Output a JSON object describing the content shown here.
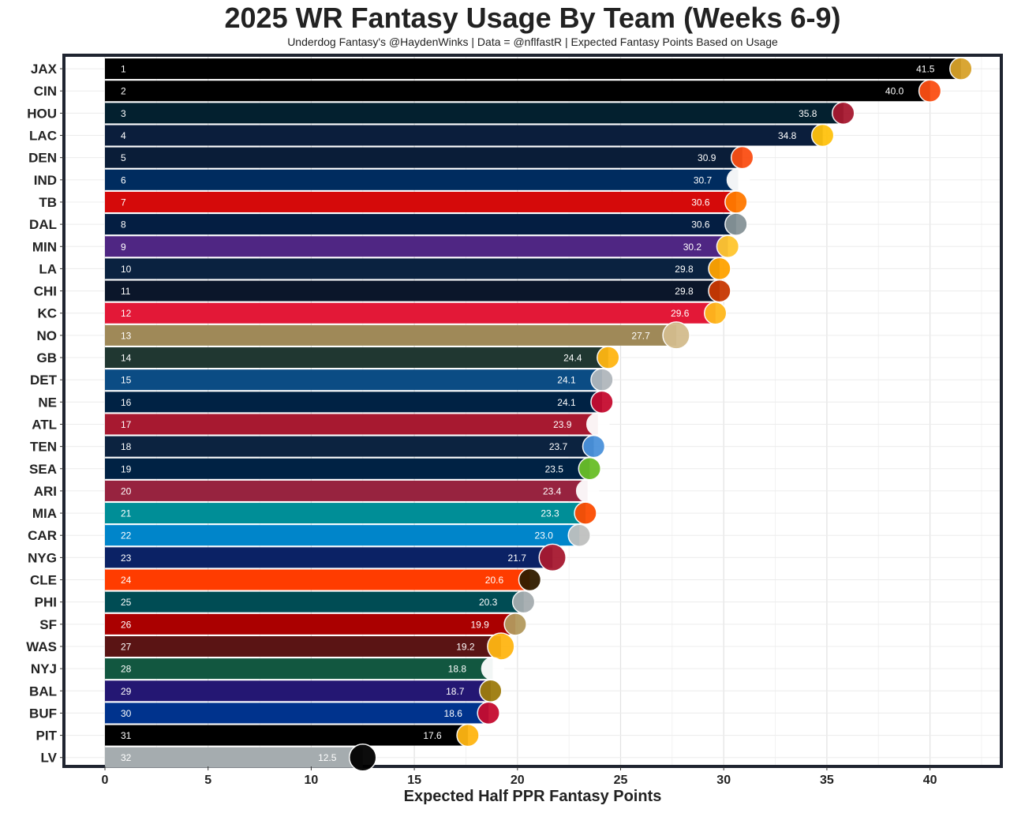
{
  "chart_data": {
    "type": "bar",
    "orientation": "horizontal",
    "title": "2025 WR Fantasy Usage By Team (Weeks 6-9)",
    "subtitle": "Underdog Fantasy's @HaydenWinks | Data = @nflfastR | Expected Fantasy Points Based on Usage",
    "xlabel": "Expected Half PPR Fantasy Points",
    "ylabel": "",
    "xlim": [
      0,
      42
    ],
    "xticks": [
      "0",
      "5",
      "10",
      "15",
      "20",
      "25",
      "30",
      "35",
      "40"
    ],
    "grid": true,
    "categories": [
      "JAX",
      "CIN",
      "HOU",
      "LAC",
      "DEN",
      "IND",
      "TB",
      "DAL",
      "MIN",
      "LA",
      "CHI",
      "KC",
      "NO",
      "GB",
      "DET",
      "NE",
      "ATL",
      "TEN",
      "SEA",
      "ARI",
      "MIA",
      "CAR",
      "NYG",
      "CLE",
      "PHI",
      "SF",
      "WAS",
      "NYJ",
      "BAL",
      "BUF",
      "PIT",
      "LV"
    ],
    "ranks": [
      "1",
      "2",
      "3",
      "4",
      "5",
      "6",
      "7",
      "8",
      "9",
      "10",
      "11",
      "12",
      "13",
      "14",
      "15",
      "16",
      "17",
      "18",
      "19",
      "20",
      "21",
      "22",
      "23",
      "24",
      "25",
      "26",
      "27",
      "28",
      "29",
      "30",
      "31",
      "32"
    ],
    "values": [
      41.5,
      40.0,
      35.8,
      34.8,
      30.9,
      30.7,
      30.6,
      30.6,
      30.2,
      29.8,
      29.8,
      29.6,
      27.7,
      24.4,
      24.1,
      24.1,
      23.9,
      23.7,
      23.5,
      23.4,
      23.3,
      23.0,
      21.7,
      20.6,
      20.3,
      19.9,
      19.2,
      18.8,
      18.7,
      18.6,
      17.6,
      12.5
    ],
    "value_labels": [
      "41.5",
      "40.0",
      "35.8",
      "34.8",
      "30.9",
      "30.7",
      "30.6",
      "30.6",
      "30.2",
      "29.8",
      "29.8",
      "29.6",
      "27.7",
      "24.4",
      "24.1",
      "24.1",
      "23.9",
      "23.7",
      "23.5",
      "23.4",
      "23.3",
      "23.0",
      "21.7",
      "20.6",
      "20.3",
      "19.9",
      "19.2",
      "18.8",
      "18.7",
      "18.6",
      "17.6",
      "12.5"
    ],
    "bar_colors": [
      "#000000",
      "#000000",
      "#03202F",
      "#0B1E3C",
      "#0A1D38",
      "#002C5F",
      "#D50A0A",
      "#041E42",
      "#4F2683",
      "#0A2240",
      "#0B162A",
      "#E31837",
      "#9F8958",
      "#203731",
      "#0B4C84",
      "#002244",
      "#A71930",
      "#0C2340",
      "#002244",
      "#97233F",
      "#008E97",
      "#0085CA",
      "#0B2265",
      "#FF3C00",
      "#004C54",
      "#AA0000",
      "#5A1414",
      "#125740",
      "#241773",
      "#00338D",
      "#000000",
      "#A5ACAF"
    ],
    "logo_colors": [
      "#D7A22A",
      "#FB4F14",
      "#A71930",
      "#FFC20E",
      "#FB4F14",
      "#FFFFFF",
      "#FF7900",
      "#869397",
      "#FFC62F",
      "#FFA300",
      "#C83803",
      "#FFB81C",
      "#D3BC8D",
      "#FFB612",
      "#B0B7BC",
      "#C60C30",
      "#FFFFFF",
      "#4B92DB",
      "#69BE28",
      "#FFFFFF",
      "#FC4C02",
      "#BFC0BF",
      "#A71930",
      "#311D00",
      "#A5ACAF",
      "#B3995D",
      "#FFB612",
      "#FFFFFF",
      "#9E7C0C",
      "#C60C30",
      "#FFB612",
      "#000000"
    ]
  }
}
